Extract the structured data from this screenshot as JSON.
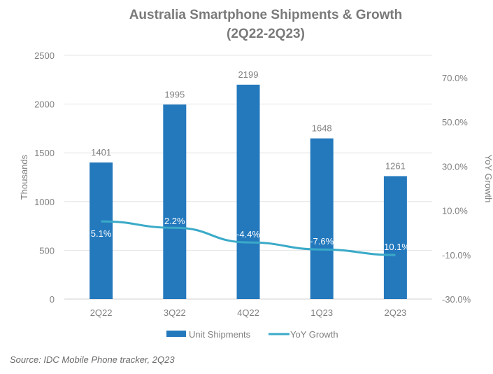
{
  "chart_data": {
    "type": "bar+line",
    "title": [
      "Australia Smartphone Shipments & Growth",
      "(2Q22-2Q23)"
    ],
    "categories": [
      "2Q22",
      "3Q22",
      "4Q22",
      "1Q23",
      "2Q23"
    ],
    "series": [
      {
        "name": "Unit Shipments",
        "type": "bar",
        "axis": "left",
        "values": [
          1401,
          1995,
          2199,
          1648,
          1261
        ],
        "labels": [
          "1401",
          "1995",
          "2199",
          "1648",
          "1261"
        ],
        "color": "#2479bd"
      },
      {
        "name": "YoY Growth",
        "type": "line",
        "axis": "right",
        "values": [
          5.1,
          2.2,
          -4.4,
          -7.6,
          -10.1
        ],
        "labels": [
          "5.1%",
          "2.2%",
          "-4.4%",
          "-7.6%",
          "-10.1%"
        ],
        "color": "#3aaac8"
      }
    ],
    "ylabel": "Thousands",
    "ylim": [
      0,
      2500
    ],
    "yticks": [
      "0",
      "500",
      "1000",
      "1500",
      "2000",
      "2500"
    ],
    "y2label": "YoY Growth",
    "y2lim": [
      -30,
      70
    ],
    "y2ticks": [
      "-30.0%",
      "-10.0%",
      "10.0%",
      "30.0%",
      "50.0%",
      "70.0%"
    ],
    "grid": true,
    "legend": "bottom"
  },
  "source": "Source: IDC Mobile Phone tracker, 2Q23"
}
